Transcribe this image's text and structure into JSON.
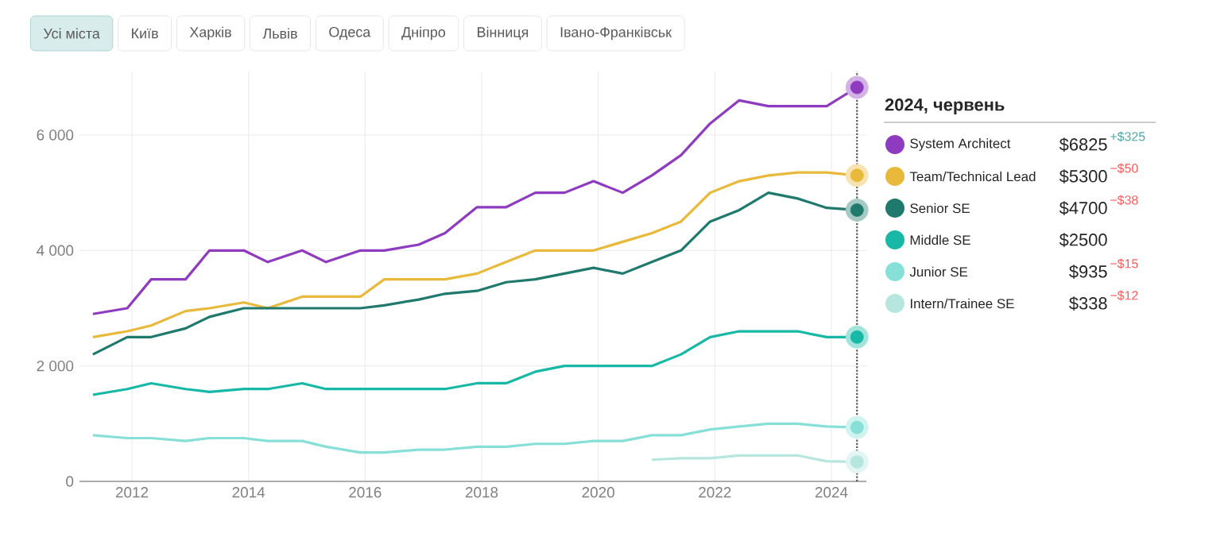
{
  "chart_data": {
    "type": "line",
    "xlim": [
      2011.1,
      2024.6
    ],
    "ylim": [
      0,
      7100
    ],
    "xticks": [
      2012,
      2014,
      2016,
      2018,
      2020,
      2022,
      2024
    ],
    "yticks": [
      0,
      {
        "value": 2000,
        "label": "2 000"
      },
      {
        "value": 4000,
        "label": "4 000"
      },
      {
        "value": 6000,
        "label": "6 000"
      }
    ],
    "grid": true,
    "legend": "right",
    "legend_title": "2024, червень",
    "x": [
      2011.33,
      2011.92,
      2012.33,
      2012.92,
      2013.33,
      2013.92,
      2014.33,
      2014.92,
      2015.33,
      2015.92,
      2016.33,
      2016.92,
      2017.37,
      2017.92,
      2018.42,
      2018.92,
      2019.42,
      2019.92,
      2020.42,
      2020.92,
      2021.42,
      2021.92,
      2022.42,
      2022.92,
      2023.42,
      2023.92,
      2024.44
    ],
    "series": [
      {
        "name": "System Architect",
        "color": "#8e3bbf",
        "values": [
          2900,
          3000,
          3500,
          3500,
          4000,
          4000,
          3800,
          4000,
          3800,
          4000,
          4000,
          4100,
          4300,
          4750,
          4750,
          5000,
          5000,
          5200,
          5000,
          5300,
          5650,
          6200,
          6600,
          6500,
          6500,
          6500,
          6825
        ]
      },
      {
        "name": "Team/Technical Lead",
        "color": "#e8b93a",
        "values": [
          2500,
          2600,
          2700,
          2950,
          3000,
          3100,
          3000,
          3200,
          3200,
          3200,
          3500,
          3500,
          3500,
          3600,
          3800,
          4000,
          4000,
          4000,
          4150,
          4300,
          4500,
          5000,
          5200,
          5300,
          5350,
          5350,
          5300
        ]
      },
      {
        "name": "Senior SE",
        "color": "#1f7a6d",
        "values": [
          2200,
          2500,
          2500,
          2650,
          2850,
          3000,
          3000,
          3000,
          3000,
          3000,
          3050,
          3150,
          3250,
          3300,
          3450,
          3500,
          3600,
          3700,
          3600,
          3800,
          4000,
          4500,
          4700,
          5000,
          4900,
          4738,
          4700
        ]
      },
      {
        "name": "Middle SE",
        "color": "#17b8a6",
        "values": [
          1500,
          1600,
          1700,
          1600,
          1550,
          1600,
          1600,
          1700,
          1600,
          1600,
          1600,
          1600,
          1600,
          1700,
          1700,
          1900,
          2000,
          2000,
          2000,
          2000,
          2200,
          2500,
          2600,
          2600,
          2600,
          2500,
          2500
        ]
      },
      {
        "name": "Junior SE",
        "color": "#86e0d8",
        "values": [
          800,
          750,
          750,
          700,
          750,
          750,
          700,
          700,
          600,
          500,
          500,
          550,
          550,
          600,
          600,
          650,
          650,
          700,
          700,
          800,
          800,
          900,
          950,
          1000,
          1000,
          950,
          935
        ]
      },
      {
        "name": "Intern/Trainee SE",
        "color": "#b6e6de",
        "x": [
          2020.92,
          2021.42,
          2021.92,
          2022.42,
          2022.92,
          2023.42,
          2023.92,
          2024.44
        ],
        "values": [
          375,
          400,
          400,
          450,
          450,
          450,
          350,
          338
        ]
      }
    ],
    "ref_lines": [
      {
        "axis": "x",
        "value": 2024.44,
        "color": "#555555",
        "line_style": "dotted"
      }
    ],
    "annotations": [
      "Усі міста",
      "Київ",
      "Харків",
      "Львів",
      "Одеса",
      "Дніпро",
      "Вінниця",
      "Івано-Франківськ",
      "$6825",
      "$5300",
      "$4700",
      "$2500",
      "$935",
      "$338",
      "+$325",
      "−$50",
      "−$38",
      "−$15",
      "−$12"
    ]
  }
}
